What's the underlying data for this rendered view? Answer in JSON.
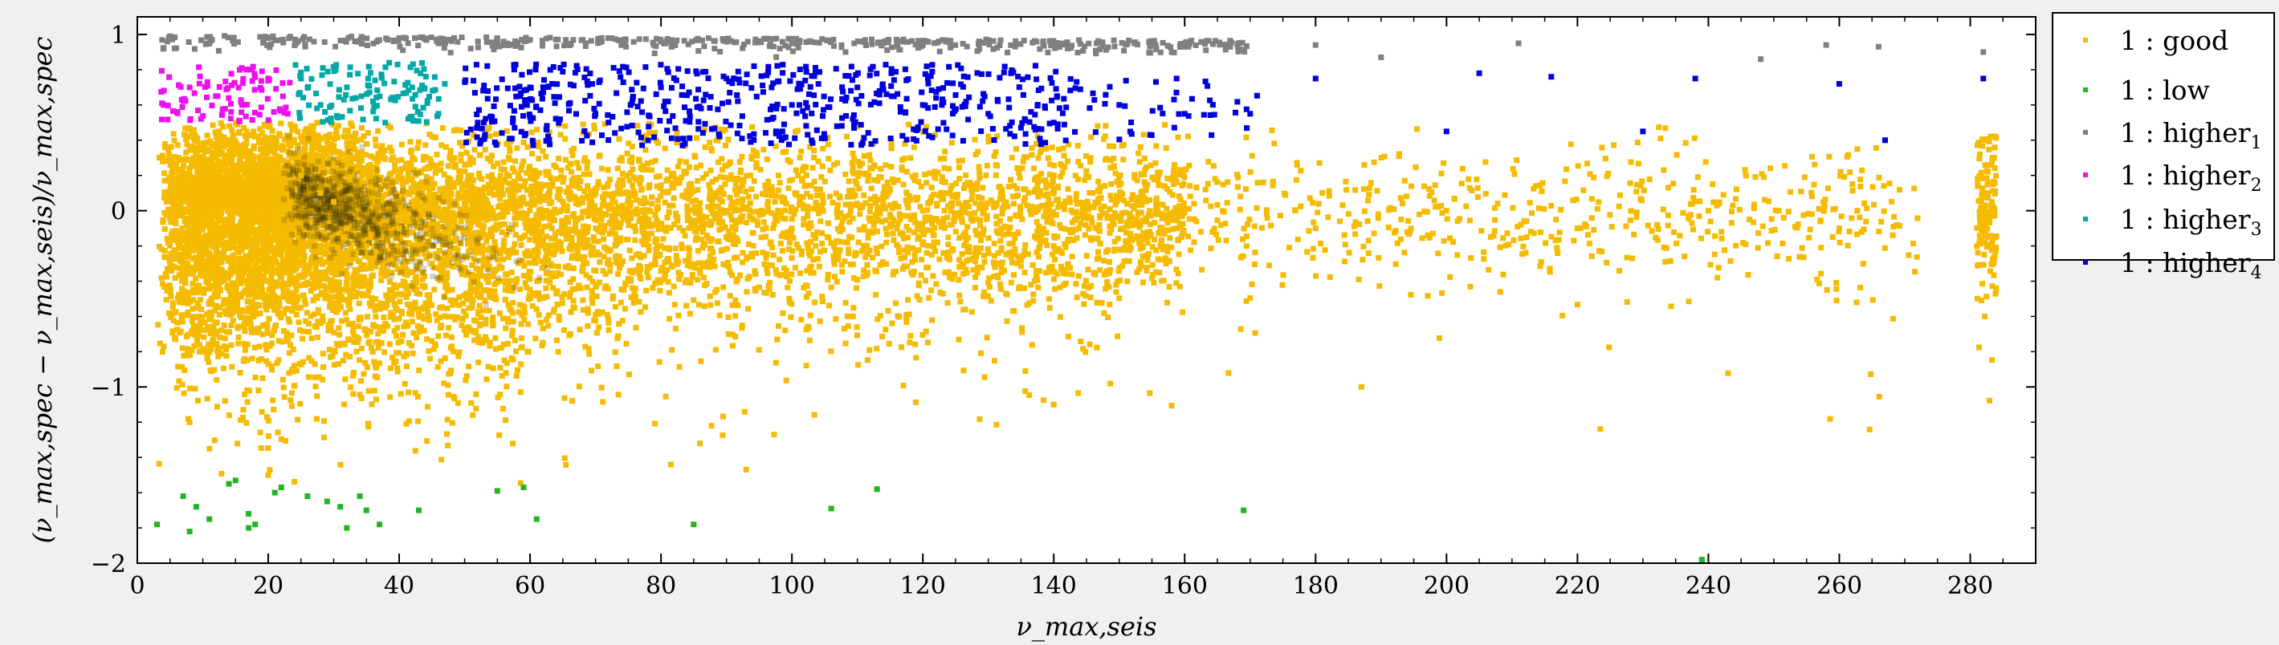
{
  "chart_data": {
    "type": "scatter",
    "title": "",
    "xlabel": "ν_max,seis",
    "ylabel": "(ν_max,spec − ν_max,seis)/ν_max,spec",
    "xlim": [
      0,
      290
    ],
    "ylim": [
      -2,
      1.1
    ],
    "x_ticks": [
      0,
      20,
      40,
      60,
      80,
      100,
      120,
      140,
      160,
      180,
      200,
      220,
      240,
      260,
      280
    ],
    "y_ticks": [
      1,
      0,
      -1,
      -2
    ],
    "x_tick_labels": [
      "0",
      "20",
      "40",
      "60",
      "80",
      "100",
      "120",
      "140",
      "160",
      "180",
      "200",
      "220",
      "240",
      "260",
      "280"
    ],
    "y_tick_labels": [
      "1",
      "0",
      "−1",
      "−2"
    ],
    "grid": false,
    "legend_position": "outside-right-top",
    "series": [
      {
        "name": "1 : good",
        "label_base": "1 : good",
        "label_sub": "",
        "color": "#f5bb00",
        "approx_count": 9000,
        "points": [
          [
            5,
            0.3
          ],
          [
            10,
            -0.2
          ],
          [
            15,
            0.1
          ],
          [
            20,
            -0.4
          ],
          [
            25,
            0.2
          ],
          [
            28,
            0.1
          ],
          [
            30,
            0.05
          ],
          [
            32,
            -0.1
          ],
          [
            35,
            -0.2
          ],
          [
            40,
            -0.1
          ],
          [
            45,
            -0.3
          ],
          [
            50,
            0.0
          ],
          [
            60,
            -0.1
          ],
          [
            70,
            0.1
          ],
          [
            80,
            -0.2
          ],
          [
            90,
            0.0
          ],
          [
            100,
            -0.1
          ],
          [
            120,
            0.0
          ],
          [
            140,
            -0.2
          ],
          [
            160,
            0.0
          ],
          [
            180,
            -0.1
          ],
          [
            200,
            0.0
          ],
          [
            220,
            -0.1
          ],
          [
            240,
            0.0
          ],
          [
            260,
            -0.1
          ],
          [
            282,
            -0.05
          ],
          [
            8,
            -1.2
          ],
          [
            20,
            -1.5
          ],
          [
            140,
            -1.1
          ],
          [
            187,
            -1.0
          ]
        ]
      },
      {
        "name": "1 : low",
        "label_base": "1 : low",
        "label_sub": "",
        "color": "#22b522",
        "points": [
          [
            3,
            -1.78
          ],
          [
            7,
            -1.62
          ],
          [
            8,
            -1.82
          ],
          [
            9,
            -1.68
          ],
          [
            11,
            -1.75
          ],
          [
            14,
            -1.55
          ],
          [
            15,
            -1.53
          ],
          [
            17,
            -1.72
          ],
          [
            17,
            -1.8
          ],
          [
            18,
            -1.78
          ],
          [
            21,
            -1.6
          ],
          [
            22,
            -1.57
          ],
          [
            26,
            -1.62
          ],
          [
            29,
            -1.65
          ],
          [
            31,
            -1.68
          ],
          [
            32,
            -1.8
          ],
          [
            34,
            -1.62
          ],
          [
            35,
            -1.7
          ],
          [
            37,
            -1.78
          ],
          [
            43,
            -1.7
          ],
          [
            55,
            -1.59
          ],
          [
            59,
            -1.57
          ],
          [
            61,
            -1.75
          ],
          [
            85,
            -1.78
          ],
          [
            106,
            -1.69
          ],
          [
            113,
            -1.58
          ],
          [
            169,
            -1.7
          ],
          [
            239,
            -1.98
          ]
        ]
      },
      {
        "name": "1 : higher1",
        "label_base": "1 : higher",
        "label_sub": "1",
        "color": "#808080",
        "approx_count": 450,
        "points": [
          [
            5,
            0.99
          ],
          [
            20,
            0.98
          ],
          [
            40,
            0.98
          ],
          [
            60,
            0.97
          ],
          [
            80,
            0.96
          ],
          [
            100,
            0.95
          ],
          [
            120,
            0.94
          ],
          [
            140,
            0.94
          ],
          [
            160,
            0.95
          ],
          [
            180,
            0.94
          ],
          [
            190,
            0.87
          ],
          [
            211,
            0.95
          ],
          [
            248,
            0.86
          ],
          [
            258,
            0.94
          ],
          [
            266,
            0.93
          ],
          [
            282,
            0.9
          ]
        ]
      },
      {
        "name": "1 : higher2",
        "label_base": "1 : higher",
        "label_sub": "2",
        "color": "#ee10ee",
        "points": [
          [
            4,
            0.6
          ],
          [
            8,
            0.7
          ],
          [
            12,
            0.65
          ],
          [
            16,
            0.6
          ],
          [
            20,
            0.75
          ],
          [
            23,
            0.55
          ]
        ]
      },
      {
        "name": "1 : higher3",
        "label_base": "1 : higher",
        "label_sub": "3",
        "color": "#00a8a8",
        "points": [
          [
            25,
            0.75
          ],
          [
            28,
            0.6
          ],
          [
            32,
            0.7
          ],
          [
            36,
            0.62
          ],
          [
            42,
            0.7
          ],
          [
            46,
            0.55
          ]
        ]
      },
      {
        "name": "1 : higher4",
        "label_base": "1 : higher",
        "label_sub": "4",
        "color": "#0000dd",
        "points": [
          [
            52,
            0.5
          ],
          [
            60,
            0.7
          ],
          [
            70,
            0.55
          ],
          [
            80,
            0.7
          ],
          [
            90,
            0.75
          ],
          [
            100,
            0.6
          ],
          [
            110,
            0.7
          ],
          [
            120,
            0.6
          ],
          [
            130,
            0.55
          ],
          [
            140,
            0.5
          ],
          [
            150,
            0.6
          ],
          [
            160,
            0.55
          ],
          [
            170,
            0.55
          ],
          [
            180,
            0.75
          ],
          [
            200,
            0.45
          ],
          [
            205,
            0.78
          ],
          [
            216,
            0.76
          ],
          [
            230,
            0.45
          ],
          [
            238,
            0.75
          ],
          [
            260,
            0.72
          ],
          [
            267,
            0.4
          ],
          [
            282,
            0.75
          ]
        ]
      }
    ]
  }
}
